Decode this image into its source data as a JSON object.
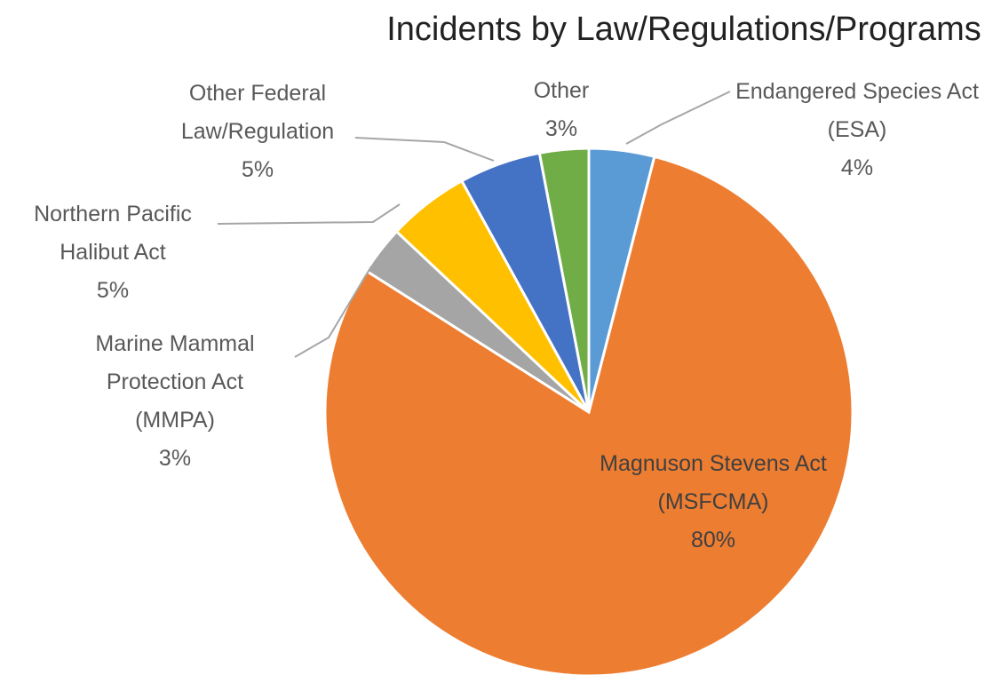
{
  "chart_data": {
    "type": "pie",
    "title": "Incidents by Law/Regulations/Programs",
    "categories": [
      "Endangered Species Act (ESA)",
      "Magnuson Stevens Act (MSFCMA)",
      "Marine Mammal Protection Act (MMPA)",
      "Northern Pacific Halibut Act",
      "Other Federal Law/Regulation",
      "Other"
    ],
    "values": [
      4,
      80,
      3,
      5,
      5,
      3
    ],
    "value_labels": [
      "4%",
      "80%",
      "3%",
      "5%",
      "5%",
      "3%"
    ],
    "colors": [
      "#5b9bd5",
      "#ed7d31",
      "#a5a5a5",
      "#ffc000",
      "#4472c4",
      "#70ad47"
    ]
  }
}
